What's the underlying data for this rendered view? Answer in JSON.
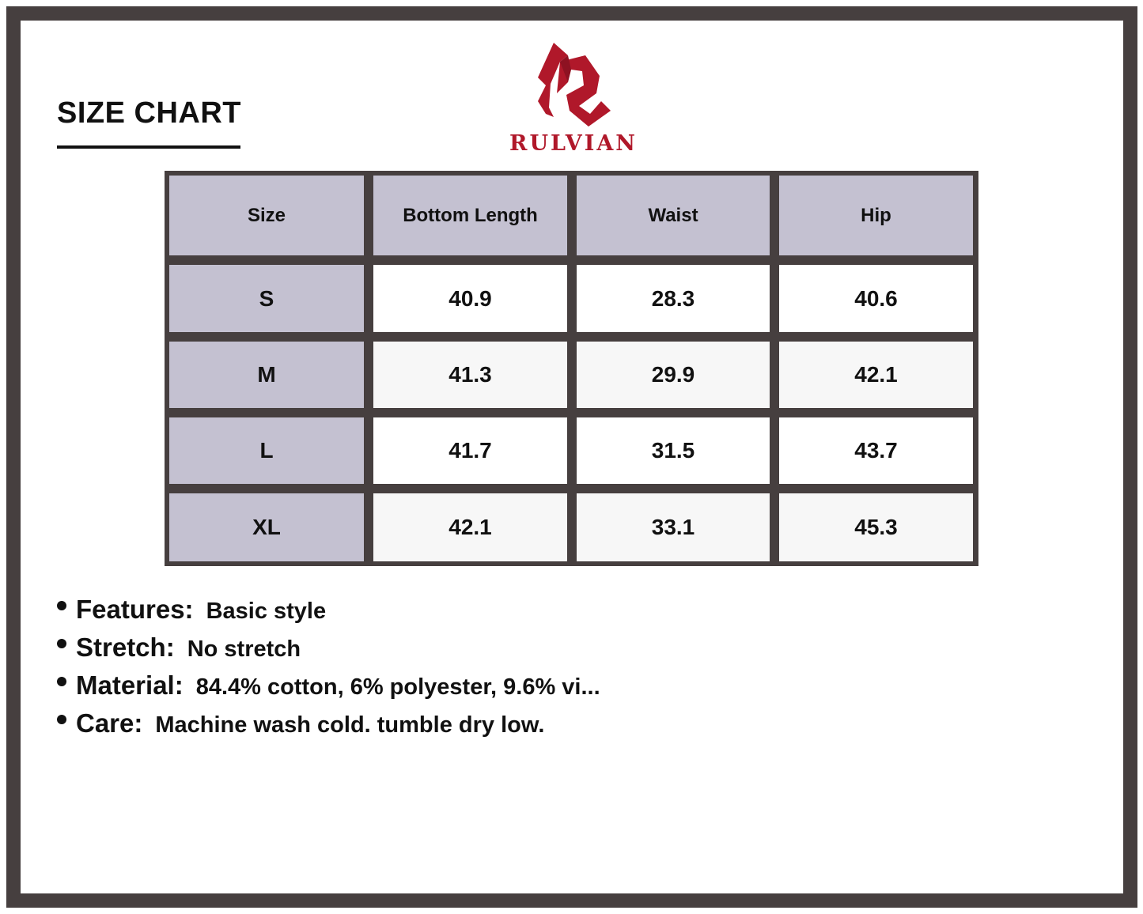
{
  "title": "SIZE CHART",
  "brand": {
    "name": "RULVIAN",
    "color": "#b0182a",
    "logo_icon": "stylized-r-logo"
  },
  "colors": {
    "border": "#463f3f",
    "header_fill": "#c4c1d1"
  },
  "table": {
    "headers": [
      "Size",
      "Bottom Length",
      "Waist",
      "Hip"
    ],
    "rows": [
      [
        "S",
        "40.9",
        "28.3",
        "40.6"
      ],
      [
        "M",
        "41.3",
        "29.9",
        "42.1"
      ],
      [
        "L",
        "41.7",
        "31.5",
        "43.7"
      ],
      [
        "XL",
        "42.1",
        "33.1",
        "45.3"
      ]
    ]
  },
  "notes": [
    {
      "label": "Features:",
      "value": "Basic style"
    },
    {
      "label": "Stretch:",
      "value": "No stretch"
    },
    {
      "label": "Material:",
      "value": "84.4% cotton, 6% polyester, 9.6% vi..."
    },
    {
      "label": "Care:",
      "value": "Machine wash cold. tumble dry low."
    }
  ]
}
